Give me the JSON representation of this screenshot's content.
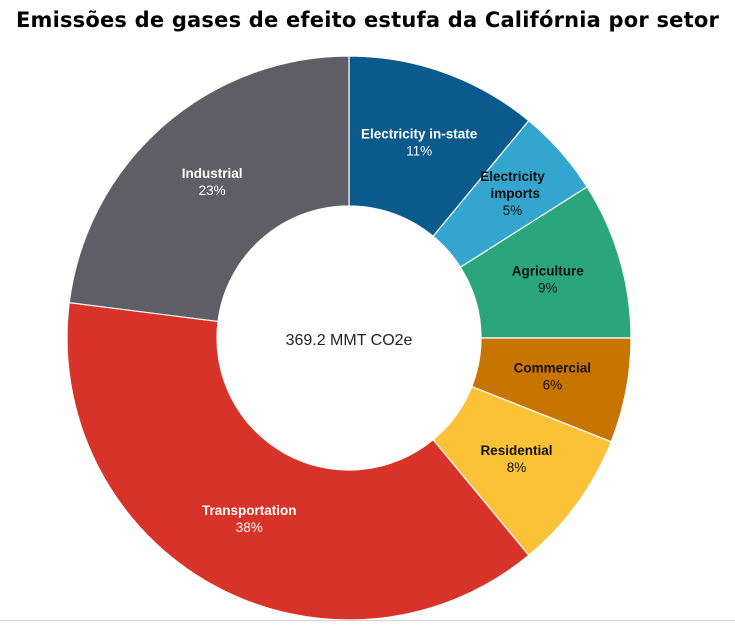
{
  "chart_data": {
    "type": "donut",
    "title": "Emissões de gases de efeito estufa da Califórnia por setor",
    "center_label": "369.2 MMT CO2e",
    "slices": [
      {
        "label": "Electricity in-state",
        "value": 11,
        "value_label": "11%",
        "color": "#0a5a8c",
        "text_color": "#ffffff"
      },
      {
        "label": "Electricity imports",
        "value": 5,
        "value_label": "5%",
        "color": "#33a5cf",
        "text_color": "#111111"
      },
      {
        "label": "Agriculture",
        "value": 9,
        "value_label": "9%",
        "color": "#2ba57c",
        "text_color": "#111111"
      },
      {
        "label": "Commercial",
        "value": 6,
        "value_label": "6%",
        "color": "#c87400",
        "text_color": "#111111"
      },
      {
        "label": "Residential",
        "value": 8,
        "value_label": "8%",
        "color": "#fbc238",
        "text_color": "#111111"
      },
      {
        "label": "Transportation",
        "value": 38,
        "value_label": "38%",
        "color": "#d73328",
        "text_color": "#ffffff"
      },
      {
        "label": "Industrial",
        "value": 23,
        "value_label": "23%",
        "color": "#5f5e66",
        "text_color": "#ffffff"
      }
    ]
  }
}
